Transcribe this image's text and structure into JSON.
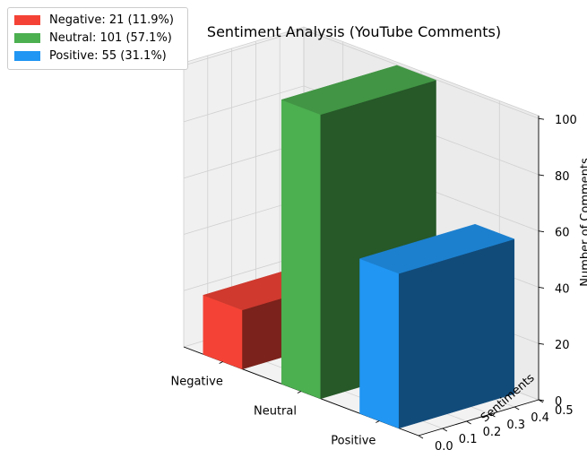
{
  "chart_data": {
    "type": "bar",
    "title": "Sentiment Analysis (YouTube Comments)",
    "xlabel": "",
    "ylabel": "Sentiments",
    "zlabel": "Number of Comments",
    "categories": [
      "Negative",
      "Neutral",
      "Positive"
    ],
    "values": [
      21,
      101,
      55
    ],
    "colors": [
      "#f44336",
      "#4caf50",
      "#2196f3"
    ],
    "y_ticks": [
      "0.0",
      "0.1",
      "0.2",
      "0.3",
      "0.4",
      "0.5"
    ],
    "z_ticks": [
      "0",
      "20",
      "40",
      "60",
      "80",
      "100"
    ],
    "ylim": [
      0,
      0.5
    ],
    "zlim": [
      0,
      101
    ],
    "grid": true,
    "legend": {
      "position": "top-left",
      "entries": [
        "Negative: 21 (11.9%)",
        "Neutral: 101 (57.1%)",
        "Positive: 55 (31.1%)"
      ]
    }
  }
}
